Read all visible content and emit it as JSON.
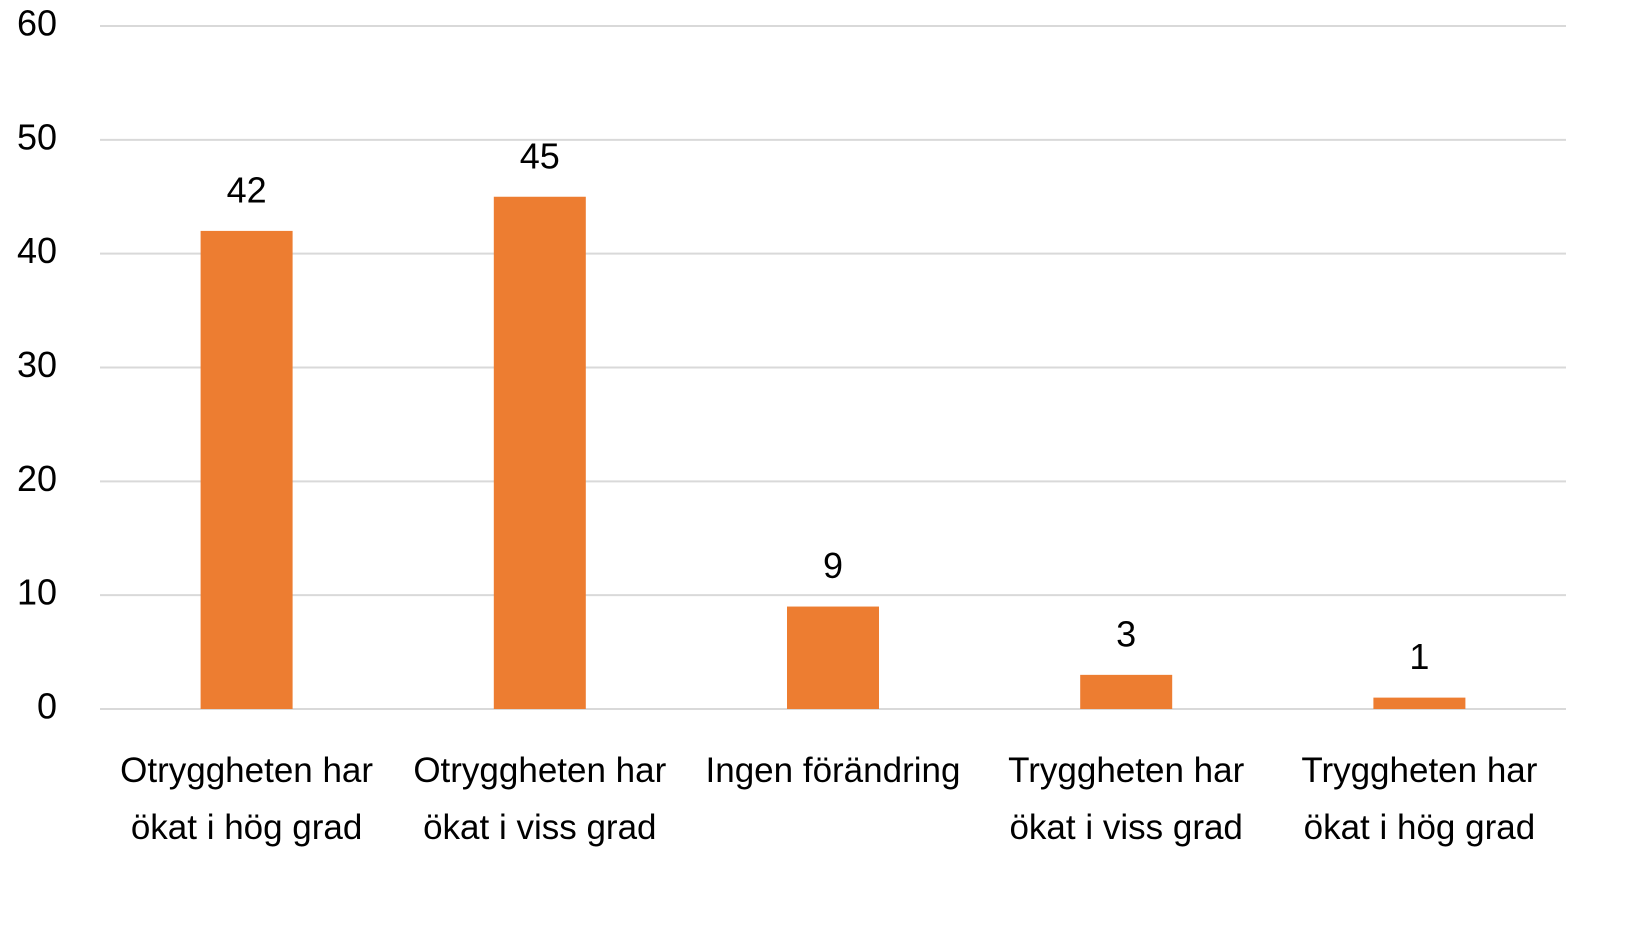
{
  "chart_data": {
    "type": "bar",
    "categories": [
      "Otryggheten har ökat i hög grad",
      "Otryggheten har ökat i viss grad",
      "Ingen förändring",
      "Tryggheten har ökat i viss grad",
      "Tryggheten har ökat i hög grad"
    ],
    "values": [
      42,
      45,
      9,
      3,
      1
    ],
    "color": "#ed7d31",
    "ylim": [
      0,
      60
    ],
    "yticks": [
      0,
      10,
      20,
      30,
      40,
      50,
      60
    ],
    "grid": true
  }
}
